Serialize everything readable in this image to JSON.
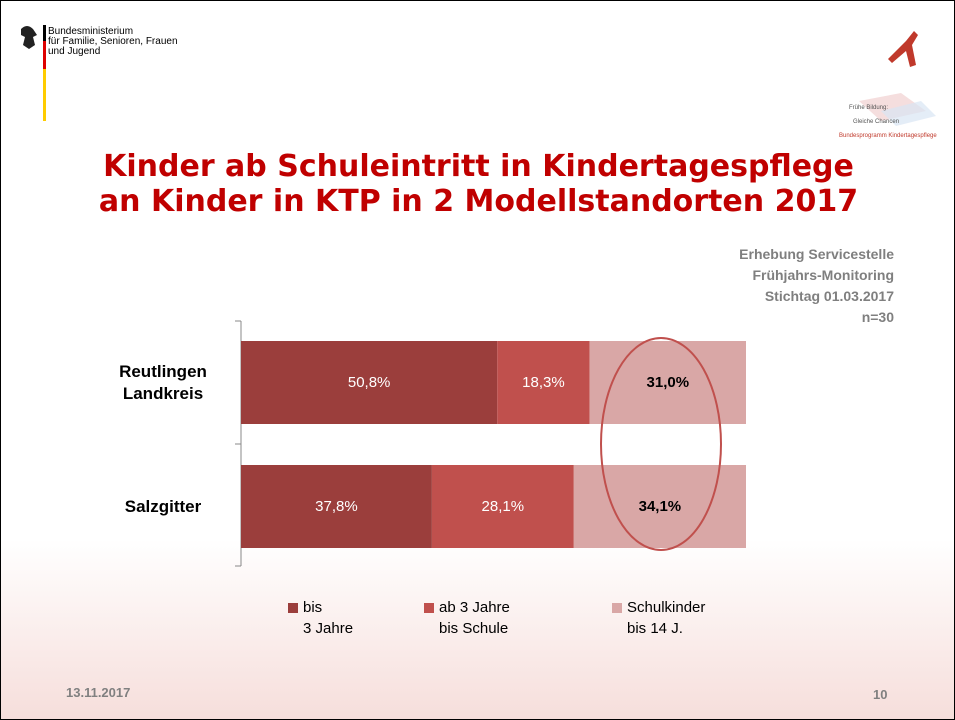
{
  "header": {
    "ministry_lines": [
      "Bundesministerium",
      "für Familie, Senioren, Frauen",
      "und Jugend"
    ],
    "logo_lines": [
      "Frühe Bildung:",
      "Gleiche Chancen"
    ],
    "logo_program": "Bundesprogramm Kindertagespflege"
  },
  "chart_data": {
    "type": "stacked_bar_horizontal",
    "title": [
      "Kinder ab Schuleintritt in Kindertagespflege",
      "an Kinder in KTP in 2 Modellstandorten 2017"
    ],
    "source_note": [
      "Erhebung Servicestelle",
      "Frühjahrs-Monitoring",
      "Stichtag 01.03.2017",
      "n=30"
    ],
    "categories": [
      "Reutlingen\nLandkreis",
      "Salzgitter"
    ],
    "series": [
      {
        "name": "bis\n3 Jahre",
        "color": "#9b3e3c",
        "label_color": "#ffffff",
        "values": [
          50.8,
          37.8
        ],
        "value_labels": [
          "50,8%",
          "37,8%"
        ]
      },
      {
        "name": "ab 3 Jahre\nbis Schule",
        "color": "#c0504d",
        "label_color": "#ffffff",
        "values": [
          18.3,
          28.1
        ],
        "value_labels": [
          "18,3%",
          "28,1%"
        ]
      },
      {
        "name": "Schulkinder\nbis 14 J.",
        "color": "#d9a7a6",
        "label_color": "#000000",
        "label_bold": true,
        "values": [
          31.0,
          34.1
        ],
        "value_labels": [
          "31,0%",
          "34,1%"
        ]
      }
    ]
  },
  "footer": {
    "date": "13.11.2017",
    "page": "10"
  }
}
